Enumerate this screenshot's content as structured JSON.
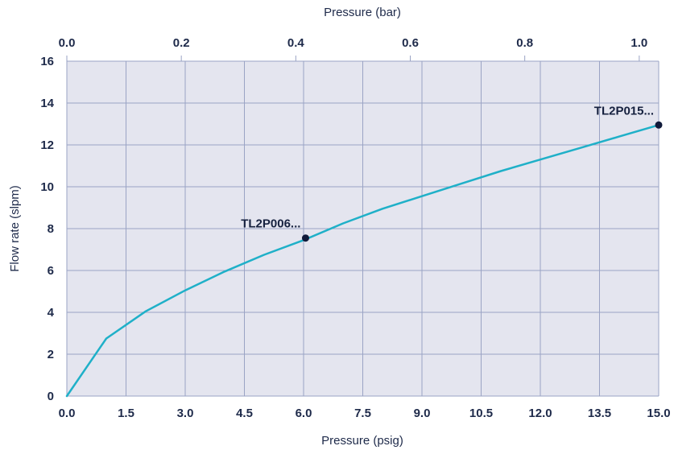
{
  "chart_data": {
    "type": "line",
    "xlabel": "Pressure (psig)",
    "x2label": "Pressure (bar)",
    "ylabel": "Flow rate (slpm)",
    "xlim": [
      0,
      15
    ],
    "x2lim": [
      0,
      1.034
    ],
    "ylim": [
      0,
      16
    ],
    "x_ticks": [
      "0.0",
      "1.5",
      "3.0",
      "4.5",
      "6.0",
      "7.5",
      "9.0",
      "10.5",
      "12.0",
      "13.5",
      "15.0"
    ],
    "x2_ticks": [
      "0.0",
      "0.2",
      "0.4",
      "0.6",
      "0.8",
      "1.0"
    ],
    "y_ticks": [
      "0",
      "2",
      "4",
      "6",
      "8",
      "10",
      "12",
      "14",
      "16"
    ],
    "grid": true,
    "colors": {
      "line": "#1fb0c8",
      "plot_bg": "#e4e5ef",
      "grid": "#9aa3c4",
      "marker": "#101a3a"
    },
    "series": [
      {
        "x": [
          0,
          1,
          2,
          3,
          4,
          5,
          6,
          7,
          8,
          9,
          10,
          11,
          12,
          13,
          14,
          15
        ],
        "y": [
          0,
          2.75,
          4.05,
          5.05,
          5.95,
          6.75,
          7.45,
          8.25,
          8.95,
          9.55,
          10.15,
          10.75,
          11.3,
          11.85,
          12.4,
          12.95
        ]
      }
    ],
    "annotations": [
      {
        "text": "TL2P006...",
        "x": 6.05,
        "y": 7.55
      },
      {
        "text": "TL2P015...",
        "x": 15.0,
        "y": 12.95
      }
    ]
  }
}
